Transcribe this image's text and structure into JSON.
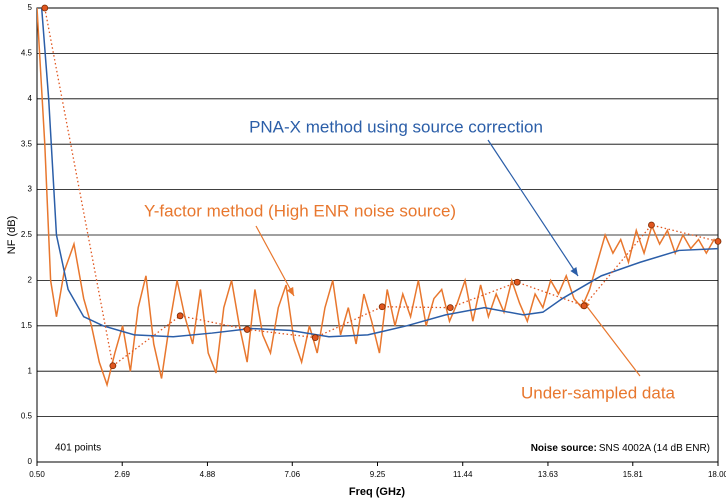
{
  "chart_data": {
    "type": "line",
    "xlabel": "Freq (GHz)",
    "ylabel": "NF (dB)",
    "xlim": [
      0.5,
      18
    ],
    "ylim": [
      0,
      5
    ],
    "xticks": [
      {
        "value": 0.5,
        "label": "0.50"
      },
      2.69,
      4.88,
      7.06,
      9.25,
      11.44,
      13.63,
      15.81,
      {
        "value": 18,
        "label": "18.00"
      }
    ],
    "yticks": [
      0,
      0.5,
      1,
      1.5,
      2,
      2.5,
      3,
      3.5,
      4,
      4.5,
      5
    ],
    "grid": true,
    "annotations": [
      "401 points",
      "Noise source:",
      "SNS 4002A (14 dB ENR)"
    ],
    "series": [
      {
        "name": "Y-factor method (High ENR noise source)",
        "color": "#e8772e",
        "style": "solid",
        "markers": false,
        "x": [
          0.5,
          0.7,
          0.85,
          1.0,
          1.2,
          1.45,
          1.7,
          1.9,
          2.1,
          2.3,
          2.5,
          2.7,
          2.9,
          3.1,
          3.3,
          3.5,
          3.7,
          3.9,
          4.1,
          4.3,
          4.5,
          4.7,
          4.9,
          5.1,
          5.3,
          5.5,
          5.7,
          5.9,
          6.1,
          6.3,
          6.5,
          6.7,
          6.9,
          7.1,
          7.3,
          7.5,
          7.7,
          7.9,
          8.1,
          8.3,
          8.5,
          8.7,
          8.9,
          9.1,
          9.3,
          9.5,
          9.7,
          9.9,
          10.1,
          10.3,
          10.5,
          10.7,
          10.9,
          11.1,
          11.3,
          11.5,
          11.7,
          11.9,
          12.1,
          12.3,
          12.5,
          12.7,
          12.9,
          13.1,
          13.3,
          13.5,
          13.7,
          13.9,
          14.1,
          14.3,
          14.5,
          14.7,
          14.9,
          15.1,
          15.3,
          15.5,
          15.7,
          15.9,
          16.1,
          16.3,
          16.5,
          16.7,
          16.9,
          17.1,
          17.3,
          17.5,
          17.7,
          17.9,
          18.0
        ],
        "values": [
          5,
          3.5,
          2.0,
          1.6,
          2.1,
          2.4,
          1.8,
          1.5,
          1.1,
          0.85,
          1.2,
          1.5,
          1.0,
          1.7,
          2.05,
          1.3,
          0.92,
          1.5,
          2.0,
          1.6,
          1.3,
          1.9,
          1.2,
          0.98,
          1.7,
          2.0,
          1.5,
          1.1,
          1.9,
          1.4,
          1.2,
          1.7,
          1.95,
          1.35,
          1.1,
          1.5,
          1.2,
          1.7,
          2.0,
          1.4,
          1.7,
          1.3,
          1.85,
          1.55,
          1.2,
          1.9,
          1.5,
          1.85,
          1.6,
          2.0,
          1.5,
          1.8,
          1.9,
          1.55,
          1.75,
          2.0,
          1.55,
          1.95,
          1.6,
          1.85,
          1.65,
          2.0,
          1.75,
          1.55,
          1.85,
          1.7,
          2.0,
          1.85,
          2.05,
          1.8,
          1.7,
          1.9,
          2.2,
          2.5,
          2.3,
          2.45,
          2.2,
          2.55,
          2.3,
          2.6,
          2.4,
          2.55,
          2.3,
          2.5,
          2.35,
          2.45,
          2.3,
          2.45,
          2.4
        ]
      },
      {
        "name": "PNA-X method using source correction",
        "color": "#2b5ea8",
        "style": "solid",
        "markers": false,
        "x": [
          0.62,
          0.8,
          1.0,
          1.3,
          1.7,
          2.2,
          3.0,
          4.0,
          5.0,
          6.0,
          7.0,
          8.0,
          9.0,
          10.0,
          11.0,
          12.0,
          13.0,
          13.5,
          14.0,
          15.0,
          16.0,
          17.0,
          18.0
        ],
        "values": [
          5,
          4,
          2.5,
          1.9,
          1.6,
          1.5,
          1.4,
          1.38,
          1.42,
          1.47,
          1.45,
          1.38,
          1.4,
          1.5,
          1.62,
          1.7,
          1.62,
          1.65,
          1.8,
          2.05,
          2.2,
          2.33,
          2.35
        ]
      },
      {
        "name": "Under-sampled data",
        "color": "#e0561f",
        "style": "dotted",
        "markers": true,
        "x": [
          0.7,
          2.45,
          4.18,
          5.9,
          7.65,
          9.37,
          11.12,
          12.84,
          14.56,
          16.29,
          18.0
        ],
        "values": [
          5,
          1.06,
          1.61,
          1.46,
          1.37,
          1.71,
          1.7,
          1.98,
          1.72,
          2.61,
          2.43
        ]
      }
    ]
  }
}
